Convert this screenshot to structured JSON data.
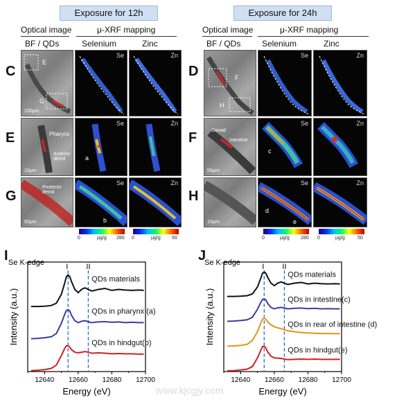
{
  "headers": {
    "left": "Exposure for 12h",
    "right": "Exposure for 24h"
  },
  "columns": {
    "optical": "Optical image",
    "xrf": "μ-XRF mapping",
    "bfqd": "BF / QDs",
    "selenium": "Selenium",
    "zinc": "Zinc"
  },
  "row_labels": {
    "C": "C",
    "D": "D",
    "E": "E",
    "F": "F",
    "G": "G",
    "H": "H"
  },
  "element_labels": {
    "se": "Se",
    "zn": "Zn"
  },
  "annotations": {
    "box_E": "E",
    "box_G": "G",
    "box_F": "F",
    "box_H": "H",
    "pharynx": "Pharynx",
    "anterior": "Anterior deirid",
    "posterior": "Posterior deirid",
    "gonad": "Gonad",
    "intestine": "Intestine",
    "a": "a",
    "b": "b",
    "c": "c",
    "d": "d",
    "e": "e",
    "scale_100": "100μm",
    "scale_10a": "10μm",
    "scale_50a": "50μm",
    "scale_50b": "50μm",
    "scale_10b": "10μm",
    "scale_50c": "50μm"
  },
  "colorbars": [
    {
      "min": "0",
      "unit": "μg/g",
      "max": "280"
    },
    {
      "min": "0",
      "unit": "μg/g",
      "max": "50"
    },
    {
      "min": "0",
      "unit": "μg/g",
      "max": "280"
    },
    {
      "min": "0",
      "unit": "μg/g",
      "max": "50"
    }
  ],
  "watermark": "www.kjcgjy.com",
  "chart_data": [
    {
      "panel": "I",
      "type": "line",
      "title": "Se K-edge",
      "xlabel": "Energy (eV)",
      "ylabel": "Intensity (a.u.)",
      "xlim": [
        12630,
        12700
      ],
      "xticks": [
        12640,
        12660,
        12680,
        12700
      ],
      "markers": [
        {
          "label": "I",
          "x": 12654
        },
        {
          "label": "II",
          "x": 12666
        }
      ],
      "series": [
        {
          "name": "QDs materials",
          "color": "#111111",
          "offset": 2.0,
          "x": [
            12632,
            12636,
            12640,
            12644,
            12647,
            12650,
            12652,
            12653,
            12654,
            12655,
            12656,
            12658,
            12660,
            12662,
            12664,
            12666,
            12668,
            12672,
            12676,
            12680,
            12684,
            12688,
            12692,
            12696,
            12699
          ],
          "y": [
            0.02,
            0.02,
            0.03,
            0.05,
            0.12,
            0.4,
            0.75,
            0.95,
            1.0,
            0.95,
            0.8,
            0.55,
            0.45,
            0.55,
            0.6,
            0.55,
            0.5,
            0.55,
            0.58,
            0.52,
            0.55,
            0.53,
            0.52,
            0.53,
            0.52
          ]
        },
        {
          "name": "QDs in pharynx (a)",
          "color": "#3a3aa8",
          "offset": 1.0,
          "x": [
            12632,
            12636,
            12640,
            12644,
            12647,
            12650,
            12652,
            12653,
            12654,
            12655,
            12656,
            12658,
            12660,
            12662,
            12664,
            12666,
            12668,
            12672,
            12676,
            12680,
            12684,
            12688,
            12692,
            12696,
            12699
          ],
          "y": [
            0.02,
            0.03,
            0.05,
            0.08,
            0.18,
            0.5,
            0.78,
            0.9,
            0.92,
            0.88,
            0.75,
            0.58,
            0.52,
            0.56,
            0.58,
            0.55,
            0.52,
            0.54,
            0.55,
            0.53,
            0.54,
            0.52,
            0.53,
            0.52,
            0.52
          ]
        },
        {
          "name": "QDs in hindgut(b)",
          "color": "#d02020",
          "offset": 0.0,
          "x": [
            12632,
            12636,
            12640,
            12644,
            12647,
            12650,
            12652,
            12653,
            12654,
            12655,
            12656,
            12658,
            12660,
            12662,
            12664,
            12666,
            12668,
            12672,
            12676,
            12680,
            12684,
            12688,
            12692,
            12696,
            12699
          ],
          "y": [
            0.03,
            0.04,
            0.06,
            0.1,
            0.2,
            0.5,
            0.72,
            0.8,
            0.8,
            0.76,
            0.68,
            0.6,
            0.58,
            0.6,
            0.62,
            0.6,
            0.57,
            0.58,
            0.57,
            0.55,
            0.56,
            0.55,
            0.55,
            0.54,
            0.54
          ]
        }
      ]
    },
    {
      "panel": "J",
      "type": "line",
      "title": "Se K-edge",
      "xlabel": "Energy (eV)",
      "ylabel": "Intensity (a.u.)",
      "xlim": [
        12630,
        12700
      ],
      "xticks": [
        12640,
        12660,
        12680,
        12700
      ],
      "markers": [
        {
          "label": "I",
          "x": 12654
        },
        {
          "label": "II",
          "x": 12666
        }
      ],
      "series": [
        {
          "name": "QDs materials",
          "color": "#111111",
          "offset": 3.0,
          "x": [
            12632,
            12636,
            12640,
            12644,
            12647,
            12650,
            12652,
            12653,
            12654,
            12655,
            12656,
            12658,
            12660,
            12662,
            12664,
            12666,
            12668,
            12672,
            12676,
            12680,
            12684,
            12688,
            12692,
            12696,
            12699
          ],
          "y": [
            0.02,
            0.02,
            0.03,
            0.05,
            0.12,
            0.4,
            0.75,
            0.95,
            1.0,
            0.95,
            0.8,
            0.55,
            0.45,
            0.55,
            0.6,
            0.55,
            0.5,
            0.55,
            0.58,
            0.52,
            0.55,
            0.53,
            0.52,
            0.53,
            0.52
          ]
        },
        {
          "name": "QDs in intestine(c)",
          "color": "#3a3aa8",
          "offset": 2.0,
          "x": [
            12632,
            12636,
            12640,
            12644,
            12647,
            12650,
            12652,
            12653,
            12654,
            12655,
            12656,
            12658,
            12660,
            12662,
            12664,
            12666,
            12668,
            12672,
            12676,
            12680,
            12684,
            12688,
            12692,
            12696,
            12699
          ],
          "y": [
            0.02,
            0.03,
            0.05,
            0.08,
            0.18,
            0.5,
            0.78,
            0.9,
            0.92,
            0.88,
            0.75,
            0.58,
            0.52,
            0.56,
            0.58,
            0.55,
            0.52,
            0.54,
            0.55,
            0.53,
            0.54,
            0.52,
            0.53,
            0.52,
            0.52
          ]
        },
        {
          "name": "QDs in rear of intestine (d)",
          "color": "#e8920f",
          "offset": 1.0,
          "x": [
            12632,
            12636,
            12640,
            12644,
            12647,
            12650,
            12652,
            12653,
            12654,
            12655,
            12656,
            12658,
            12660,
            12662,
            12664,
            12666,
            12668,
            12672,
            12676,
            12680,
            12684,
            12688,
            12692,
            12696,
            12699
          ],
          "y": [
            0.02,
            0.03,
            0.05,
            0.1,
            0.25,
            0.6,
            0.95,
            1.1,
            1.15,
            1.1,
            1.0,
            0.88,
            0.8,
            0.76,
            0.72,
            0.68,
            0.64,
            0.6,
            0.57,
            0.55,
            0.54,
            0.53,
            0.53,
            0.52,
            0.52
          ]
        },
        {
          "name": "QDs in hindgut(e)",
          "color": "#d02020",
          "offset": 0.0,
          "x": [
            12632,
            12636,
            12640,
            12644,
            12647,
            12650,
            12652,
            12653,
            12654,
            12655,
            12656,
            12658,
            12660,
            12662,
            12664,
            12666,
            12668,
            12672,
            12676,
            12680,
            12684,
            12688,
            12692,
            12696,
            12699
          ],
          "y": [
            0.03,
            0.04,
            0.06,
            0.1,
            0.2,
            0.55,
            0.85,
            1.0,
            1.02,
            0.95,
            0.8,
            0.62,
            0.55,
            0.54,
            0.53,
            0.5,
            0.48,
            0.49,
            0.5,
            0.49,
            0.5,
            0.49,
            0.49,
            0.49,
            0.49
          ]
        }
      ]
    }
  ]
}
